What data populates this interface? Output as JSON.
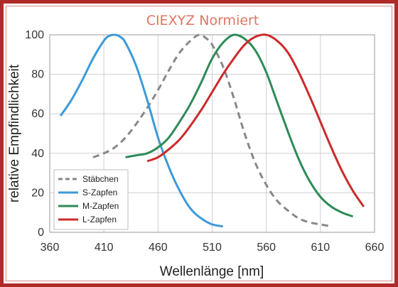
{
  "chart_data": {
    "type": "line",
    "title": "CIEXYZ Normiert",
    "xlabel": "Wellenlänge [nm]",
    "ylabel": "relative Empfindlichkeit",
    "xlim": [
      360,
      660
    ],
    "ylim": [
      0,
      100
    ],
    "xticks": [
      "360",
      "410",
      "460",
      "510",
      "560",
      "610",
      "660"
    ],
    "yticks": [
      "0",
      "20",
      "40",
      "60",
      "80",
      "100"
    ],
    "grid": true,
    "legend_position": "bottom-left",
    "series": [
      {
        "name": "Stäbchen",
        "color": "#888888",
        "dash": true,
        "x": [
          400,
          410,
          420,
          430,
          440,
          450,
          460,
          470,
          480,
          490,
          498,
          505,
          510,
          520,
          530,
          540,
          550,
          560,
          570,
          580,
          590,
          600,
          610,
          620
        ],
        "y": [
          38,
          40,
          43,
          48,
          55,
          63,
          72,
          82,
          91,
          97,
          100,
          98,
          95,
          84,
          68,
          50,
          35,
          24,
          16,
          11,
          7,
          5,
          4,
          3
        ]
      },
      {
        "name": "S-Zapfen",
        "color": "#3d9ad8",
        "dash": false,
        "x": [
          370,
          380,
          390,
          400,
          410,
          415,
          420,
          425,
          430,
          440,
          450,
          460,
          470,
          480,
          490,
          500,
          510,
          520
        ],
        "y": [
          59,
          67,
          77,
          88,
          97,
          99.5,
          100,
          99,
          96,
          84,
          67,
          48,
          33,
          21,
          12,
          7,
          4,
          3
        ]
      },
      {
        "name": "M-Zapfen",
        "color": "#2e8b57",
        "dash": false,
        "x": [
          430,
          440,
          450,
          460,
          470,
          480,
          490,
          500,
          510,
          520,
          530,
          540,
          550,
          560,
          570,
          580,
          590,
          600,
          610,
          620,
          630,
          640
        ],
        "y": [
          38,
          39,
          40,
          43,
          48,
          56,
          65,
          76,
          88,
          96,
          100,
          98,
          92,
          81,
          66,
          51,
          37,
          26,
          18,
          13,
          10,
          8
        ]
      },
      {
        "name": "L-Zapfen",
        "color": "#cc2a2a",
        "dash": false,
        "x": [
          450,
          460,
          470,
          480,
          490,
          500,
          510,
          520,
          530,
          540,
          550,
          560,
          570,
          580,
          590,
          600,
          610,
          620,
          630,
          640,
          650
        ],
        "y": [
          36,
          38,
          42,
          47,
          54,
          62,
          71,
          80,
          88,
          95,
          99,
          100,
          97,
          91,
          81,
          69,
          56,
          43,
          31,
          21,
          13
        ]
      }
    ]
  }
}
